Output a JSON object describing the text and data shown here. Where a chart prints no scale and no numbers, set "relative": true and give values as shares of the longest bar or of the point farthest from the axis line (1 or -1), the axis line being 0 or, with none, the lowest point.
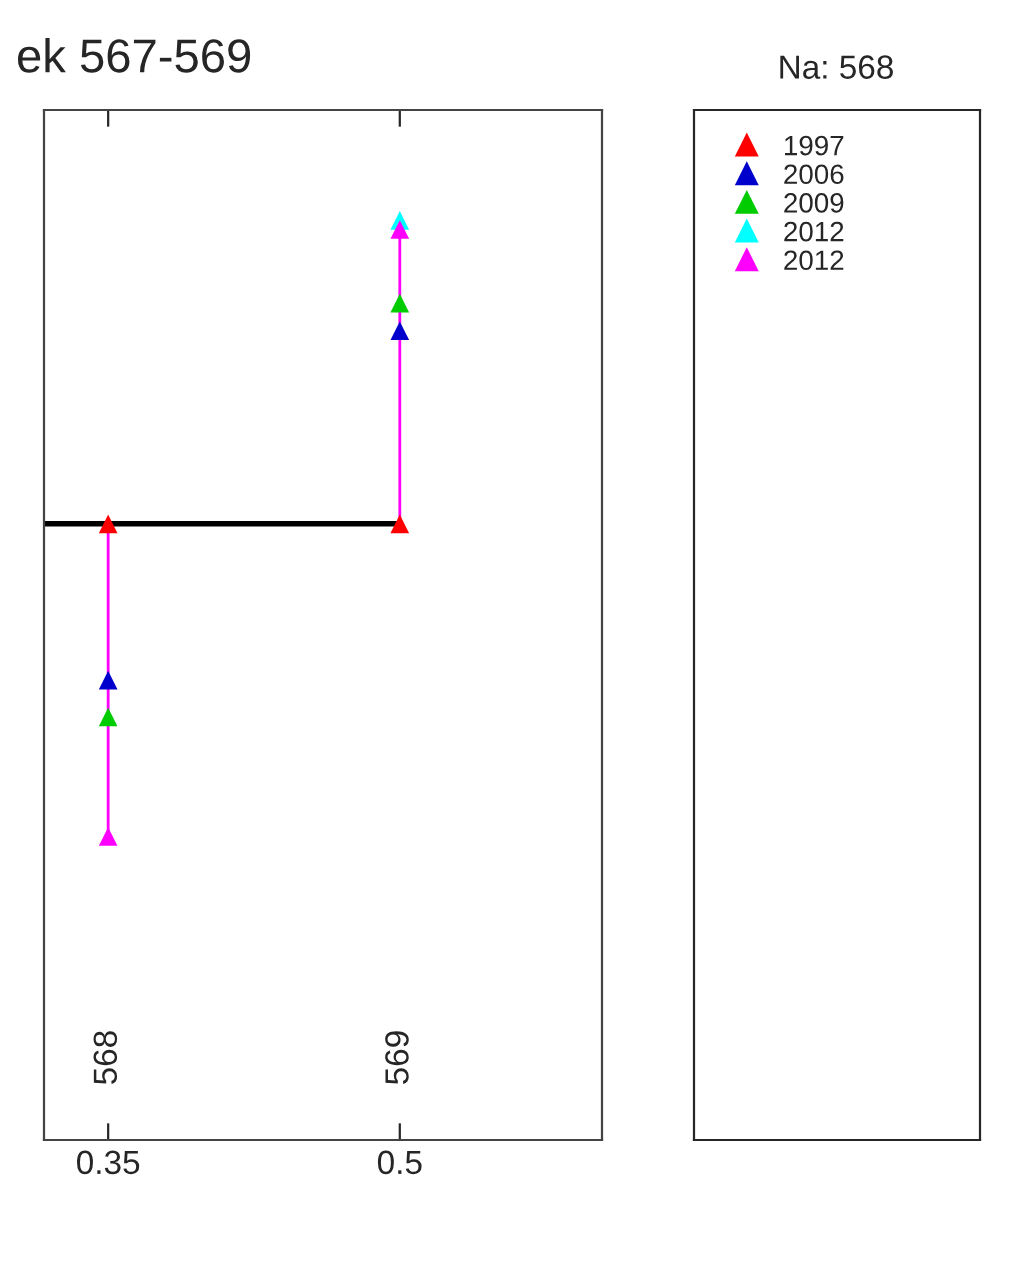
{
  "chart_data": {
    "type": "line",
    "title": "ek 567-569",
    "relative": true,
    "legend_title": "Na: 568",
    "legend": "right",
    "xlim": [
      0.317,
      0.604
    ],
    "xticks": [
      0.35,
      0.5
    ],
    "series": [
      {
        "color": "#000000",
        "x": [
          0.317,
          0.5
        ],
        "values": [
          0.67,
          0.67
        ]
      },
      {
        "color": "#ff00ff",
        "x": [
          0.35,
          0.35,
          0.42,
          0.5,
          0.5
        ],
        "values": [
          0.67,
          0.33,
          null,
          0.67,
          0.99
        ]
      },
      {
        "name": "1997",
        "type": "scatter",
        "color": "#ff0000",
        "marker": "triangle",
        "x": [
          0.35,
          0.5
        ],
        "values": [
          0.67,
          0.67
        ]
      },
      {
        "name": "2006",
        "type": "scatter",
        "color": "#0000cc",
        "marker": "triangle",
        "x": [
          0.35,
          0.5
        ],
        "values": [
          0.5,
          0.88
        ]
      },
      {
        "name": "2009",
        "type": "scatter",
        "color": "#00cc00",
        "marker": "triangle",
        "x": [
          0.35,
          0.5
        ],
        "values": [
          0.46,
          0.91
        ]
      },
      {
        "name": "2012",
        "type": "scatter",
        "color": "#00ffff",
        "marker": "triangle",
        "x": [
          0.5
        ],
        "values": [
          1
        ]
      },
      {
        "name": "2012",
        "type": "scatter",
        "color": "#ff00ff",
        "marker": "triangle",
        "x": [
          0.35,
          0.5
        ],
        "values": [
          0.33,
          0.99
        ]
      }
    ],
    "annotations": [
      "568",
      "569"
    ]
  }
}
